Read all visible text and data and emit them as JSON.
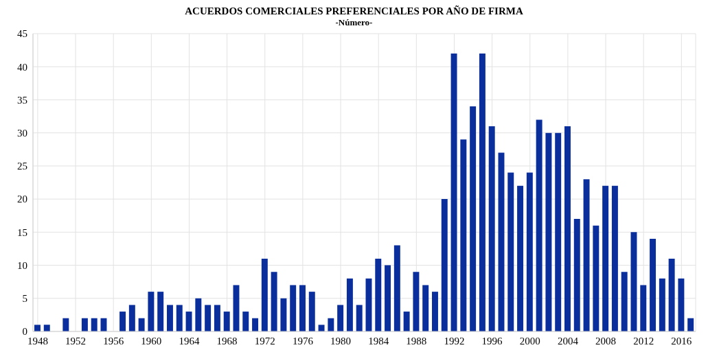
{
  "chart_data": {
    "type": "bar",
    "title": "ACUERDOS COMERCIALES PREFERENCIALES POR AÑO DE FIRMA",
    "subtitle": "-Número-",
    "categories": [
      "1948",
      null,
      null,
      null,
      "1952",
      null,
      null,
      null,
      "1956",
      null,
      null,
      null,
      "1960",
      null,
      null,
      null,
      "1964",
      null,
      null,
      null,
      "1968",
      null,
      null,
      null,
      "1972",
      null,
      null,
      null,
      "1976",
      null,
      null,
      null,
      "1980",
      null,
      null,
      null,
      "1984",
      null,
      null,
      null,
      "1988",
      null,
      null,
      null,
      "1992",
      null,
      null,
      null,
      "1996",
      null,
      null,
      null,
      "2000",
      null,
      null,
      null,
      "2004",
      null,
      null,
      null,
      "2008",
      null,
      null,
      null,
      "2012",
      null,
      null,
      null,
      "2016",
      null
    ],
    "values": [
      1,
      1,
      0,
      2,
      0,
      2,
      2,
      2,
      0,
      3,
      4,
      2,
      6,
      6,
      4,
      4,
      3,
      5,
      4,
      4,
      3,
      7,
      3,
      2,
      11,
      9,
      5,
      7,
      7,
      6,
      1,
      2,
      4,
      8,
      4,
      8,
      11,
      10,
      13,
      3,
      9,
      7,
      6,
      20,
      42,
      29,
      34,
      42,
      31,
      27,
      24,
      22,
      24,
      32,
      30,
      30,
      31,
      17,
      23,
      16,
      22,
      22,
      9,
      15,
      7,
      14,
      8,
      11,
      8,
      2
    ],
    "color": "#0a2f9c",
    "ylim": [
      0,
      45
    ],
    "yticks": [
      0,
      5,
      10,
      15,
      20,
      25,
      30,
      35,
      40,
      45
    ],
    "grid": true
  }
}
